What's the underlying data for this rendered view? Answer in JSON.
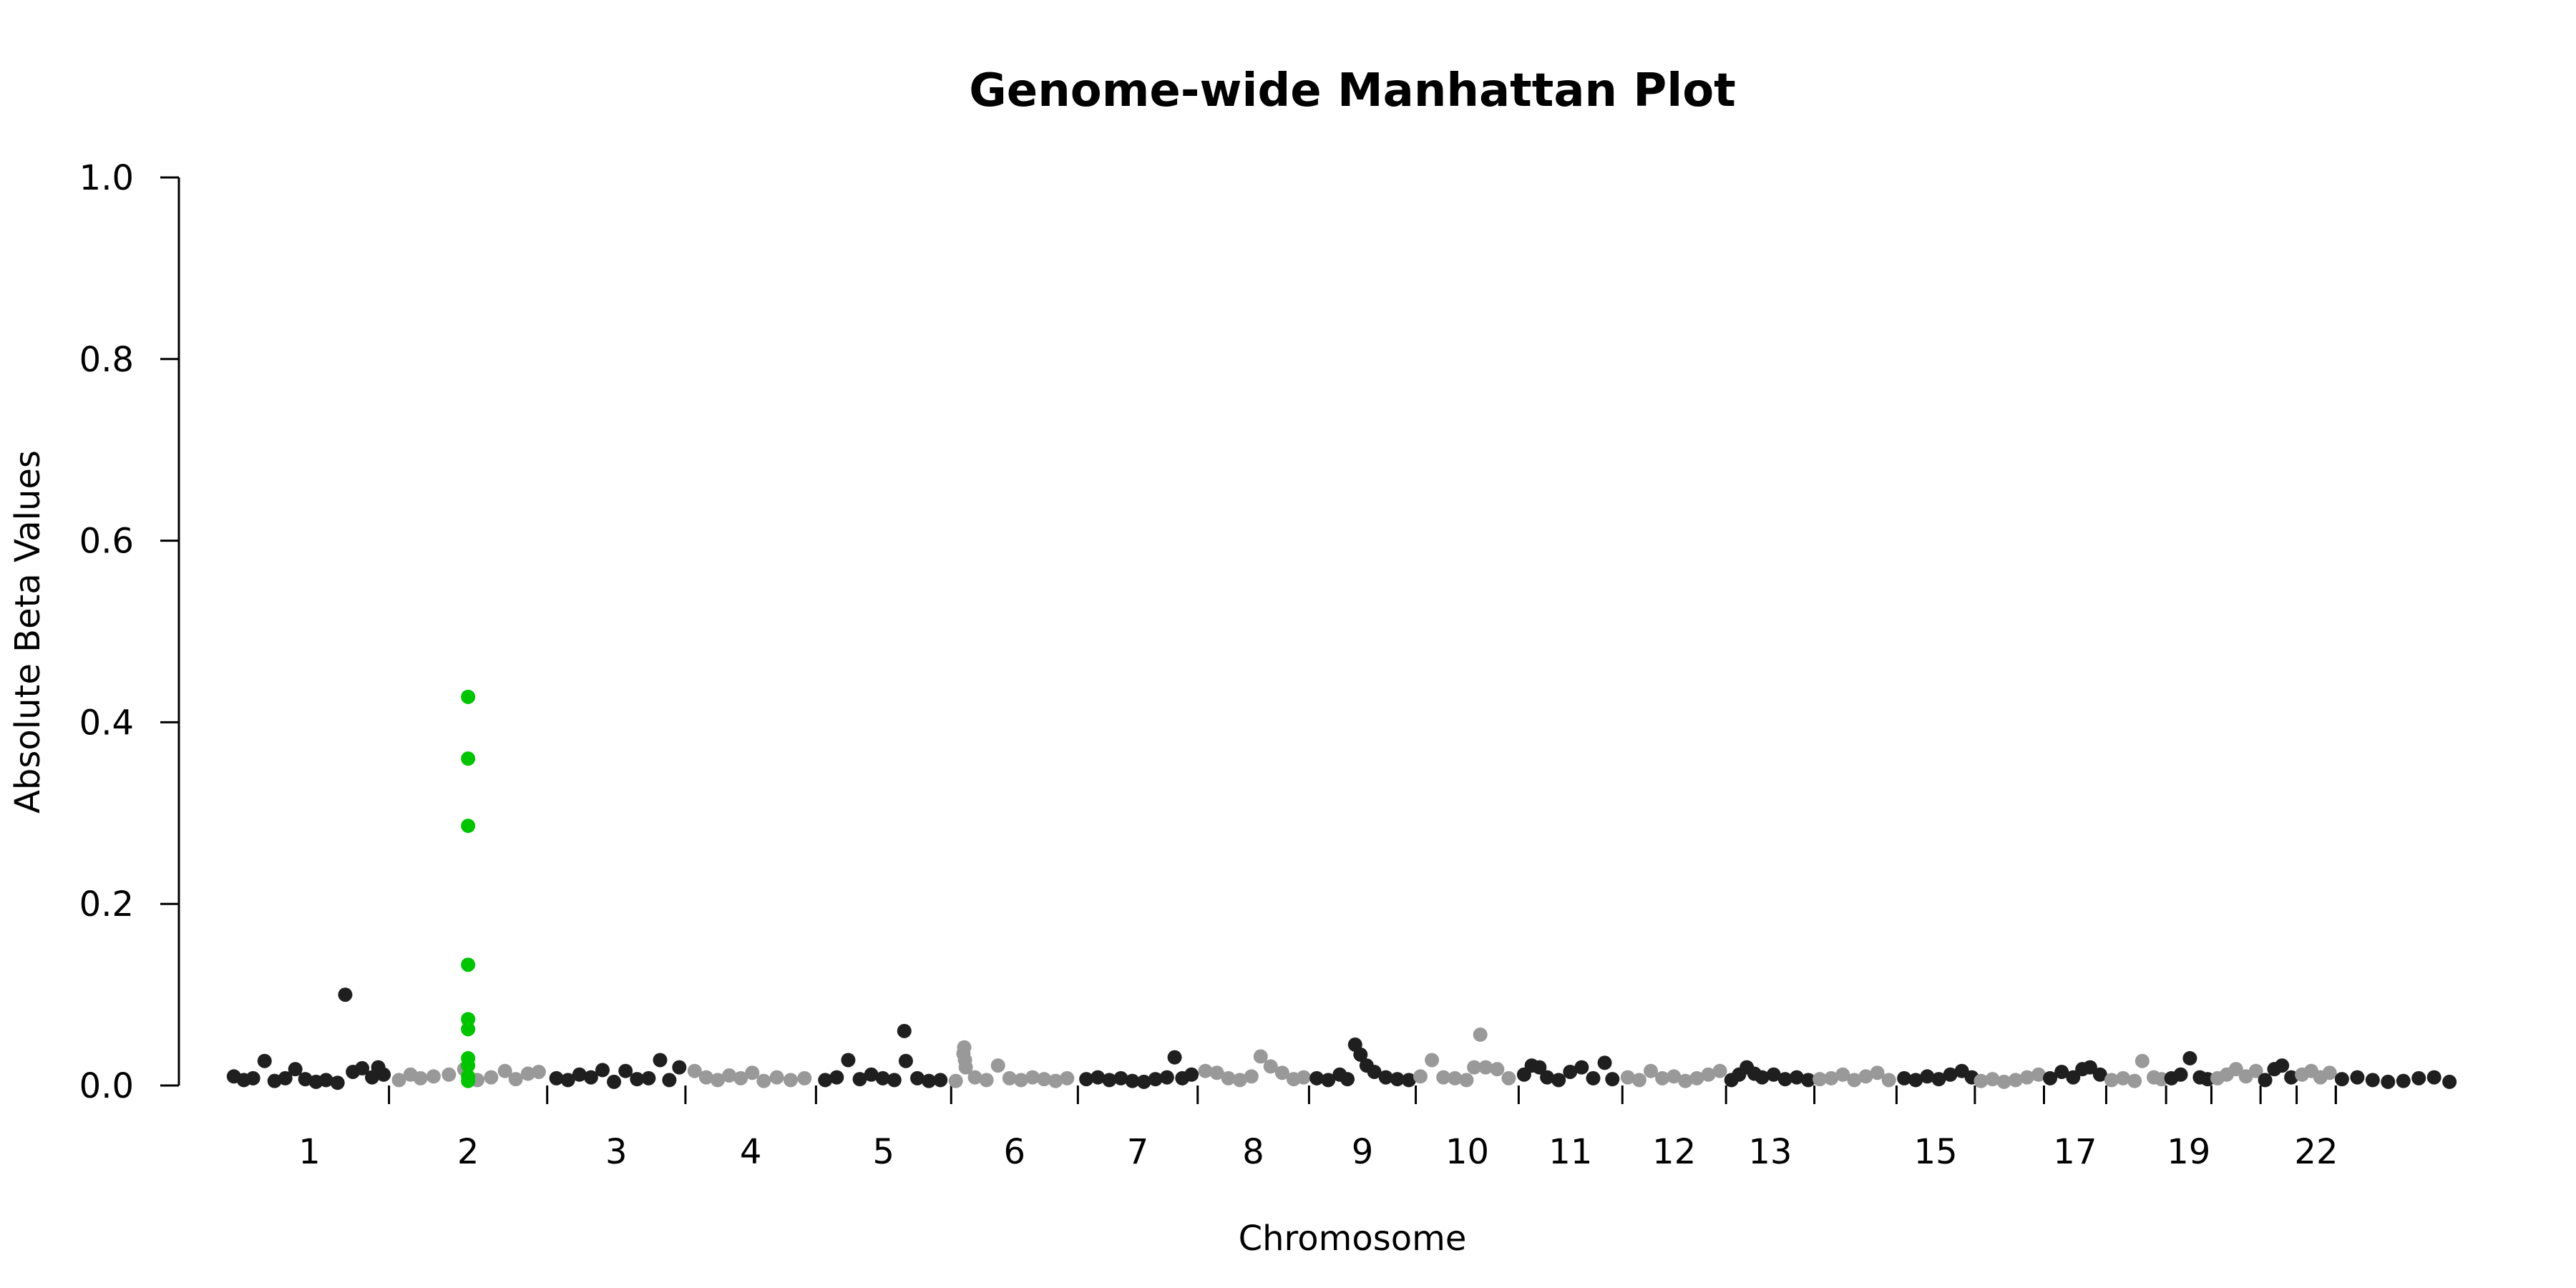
{
  "chart_data": {
    "type": "scatter",
    "title": "Genome-wide Manhattan Plot",
    "xlabel": "Chromosome",
    "ylabel": "Absolute Beta Values",
    "ylim": [
      0,
      1.0
    ],
    "yticks": [
      "0.0",
      "0.2",
      "0.4",
      "0.6",
      "0.8",
      "1.0"
    ],
    "grid": false,
    "legend": "none",
    "colors": {
      "odd": "#1f1f1f",
      "even": "#999999",
      "highlight": "#00c400"
    },
    "chromosomes": [
      {
        "chr": 1,
        "start": 0,
        "end": 207,
        "label": "1"
      },
      {
        "chr": 2,
        "start": 207,
        "end": 413,
        "label": "2"
      },
      {
        "chr": 3,
        "start": 413,
        "end": 593,
        "label": "3"
      },
      {
        "chr": 4,
        "start": 593,
        "end": 763,
        "label": "4"
      },
      {
        "chr": 5,
        "start": 763,
        "end": 939,
        "label": "5"
      },
      {
        "chr": 6,
        "start": 939,
        "end": 1104,
        "label": "6"
      },
      {
        "chr": 7,
        "start": 1104,
        "end": 1260,
        "label": "7"
      },
      {
        "chr": 8,
        "start": 1260,
        "end": 1405,
        "label": "8"
      },
      {
        "chr": 9,
        "start": 1405,
        "end": 1544,
        "label": "9"
      },
      {
        "chr": 10,
        "start": 1544,
        "end": 1678,
        "label": "10"
      },
      {
        "chr": 11,
        "start": 1678,
        "end": 1813,
        "label": "11"
      },
      {
        "chr": 12,
        "start": 1813,
        "end": 1948,
        "label": "12"
      },
      {
        "chr": 13,
        "start": 1948,
        "end": 2063,
        "label": "13"
      },
      {
        "chr": 14,
        "start": 2063,
        "end": 2170,
        "label": ""
      },
      {
        "chr": 15,
        "start": 2170,
        "end": 2272,
        "label": "15"
      },
      {
        "chr": 16,
        "start": 2272,
        "end": 2362,
        "label": ""
      },
      {
        "chr": 17,
        "start": 2362,
        "end": 2443,
        "label": "17"
      },
      {
        "chr": 18,
        "start": 2443,
        "end": 2521,
        "label": ""
      },
      {
        "chr": 19,
        "start": 2521,
        "end": 2580,
        "label": "19"
      },
      {
        "chr": 20,
        "start": 2580,
        "end": 2644,
        "label": ""
      },
      {
        "chr": 21,
        "start": 2644,
        "end": 2691,
        "label": ""
      },
      {
        "chr": 22,
        "start": 2691,
        "end": 2742,
        "label": "22"
      },
      {
        "chr": 23,
        "start": 2742,
        "end": 2900,
        "label": ""
      }
    ],
    "xlim": [
      -20,
      2915
    ],
    "background_points": [
      [
        5,
        0.01,
        1
      ],
      [
        18,
        0.006,
        1
      ],
      [
        30,
        0.008,
        1
      ],
      [
        45,
        0.027,
        1
      ],
      [
        58,
        0.005,
        1
      ],
      [
        72,
        0.008,
        1
      ],
      [
        85,
        0.018,
        1
      ],
      [
        98,
        0.007,
        1
      ],
      [
        112,
        0.004,
        1
      ],
      [
        125,
        0.006,
        1
      ],
      [
        140,
        0.003,
        1
      ],
      [
        150,
        0.1,
        1
      ],
      [
        160,
        0.015,
        1
      ],
      [
        172,
        0.019,
        1
      ],
      [
        185,
        0.009,
        1
      ],
      [
        193,
        0.02,
        1
      ],
      [
        200,
        0.012,
        1
      ],
      [
        220,
        0.006,
        2
      ],
      [
        235,
        0.012,
        2
      ],
      [
        248,
        0.008,
        2
      ],
      [
        265,
        0.01,
        2
      ],
      [
        285,
        0.012,
        2
      ],
      [
        305,
        0.018,
        2
      ],
      [
        322,
        0.006,
        2
      ],
      [
        340,
        0.009,
        2
      ],
      [
        358,
        0.016,
        2
      ],
      [
        372,
        0.007,
        2
      ],
      [
        388,
        0.013,
        2
      ],
      [
        402,
        0.015,
        2
      ],
      [
        425,
        0.008,
        3
      ],
      [
        440,
        0.006,
        3
      ],
      [
        455,
        0.012,
        3
      ],
      [
        470,
        0.009,
        3
      ],
      [
        485,
        0.017,
        3
      ],
      [
        500,
        0.004,
        3
      ],
      [
        515,
        0.016,
        3
      ],
      [
        530,
        0.007,
        3
      ],
      [
        545,
        0.008,
        3
      ],
      [
        560,
        0.028,
        3
      ],
      [
        572,
        0.006,
        3
      ],
      [
        585,
        0.02,
        3
      ],
      [
        605,
        0.016,
        4
      ],
      [
        620,
        0.009,
        4
      ],
      [
        635,
        0.006,
        4
      ],
      [
        650,
        0.011,
        4
      ],
      [
        665,
        0.008,
        4
      ],
      [
        680,
        0.014,
        4
      ],
      [
        695,
        0.005,
        4
      ],
      [
        712,
        0.009,
        4
      ],
      [
        730,
        0.006,
        4
      ],
      [
        748,
        0.008,
        4
      ],
      [
        775,
        0.006,
        5
      ],
      [
        790,
        0.009,
        5
      ],
      [
        805,
        0.028,
        5
      ],
      [
        820,
        0.007,
        5
      ],
      [
        835,
        0.012,
        5
      ],
      [
        850,
        0.008,
        5
      ],
      [
        865,
        0.006,
        5
      ],
      [
        878,
        0.06,
        5
      ],
      [
        880,
        0.027,
        5
      ],
      [
        895,
        0.008,
        5
      ],
      [
        910,
        0.005,
        5
      ],
      [
        925,
        0.006,
        5
      ],
      [
        945,
        0.005,
        6
      ],
      [
        955,
        0.035,
        6
      ],
      [
        956,
        0.042,
        6
      ],
      [
        957,
        0.028,
        6
      ],
      [
        958,
        0.02,
        6
      ],
      [
        970,
        0.009,
        6
      ],
      [
        985,
        0.006,
        6
      ],
      [
        1000,
        0.022,
        6
      ],
      [
        1015,
        0.008,
        6
      ],
      [
        1030,
        0.006,
        6
      ],
      [
        1045,
        0.009,
        6
      ],
      [
        1060,
        0.007,
        6
      ],
      [
        1075,
        0.005,
        6
      ],
      [
        1090,
        0.008,
        6
      ],
      [
        1115,
        0.007,
        7
      ],
      [
        1130,
        0.009,
        7
      ],
      [
        1145,
        0.006,
        7
      ],
      [
        1160,
        0.008,
        7
      ],
      [
        1175,
        0.005,
        7
      ],
      [
        1190,
        0.004,
        7
      ],
      [
        1205,
        0.007,
        7
      ],
      [
        1220,
        0.009,
        7
      ],
      [
        1230,
        0.031,
        7
      ],
      [
        1240,
        0.008,
        7
      ],
      [
        1252,
        0.012,
        7
      ],
      [
        1270,
        0.016,
        8
      ],
      [
        1285,
        0.014,
        8
      ],
      [
        1300,
        0.008,
        8
      ],
      [
        1315,
        0.006,
        8
      ],
      [
        1330,
        0.01,
        8
      ],
      [
        1342,
        0.032,
        8
      ],
      [
        1355,
        0.021,
        8
      ],
      [
        1370,
        0.014,
        8
      ],
      [
        1385,
        0.007,
        8
      ],
      [
        1398,
        0.009,
        8
      ],
      [
        1415,
        0.008,
        9
      ],
      [
        1430,
        0.006,
        9
      ],
      [
        1445,
        0.012,
        9
      ],
      [
        1455,
        0.007,
        9
      ],
      [
        1465,
        0.045,
        9
      ],
      [
        1472,
        0.034,
        9
      ],
      [
        1480,
        0.022,
        9
      ],
      [
        1490,
        0.015,
        9
      ],
      [
        1505,
        0.009,
        9
      ],
      [
        1520,
        0.007,
        9
      ],
      [
        1535,
        0.006,
        9
      ],
      [
        1550,
        0.01,
        10
      ],
      [
        1565,
        0.028,
        10
      ],
      [
        1580,
        0.009,
        10
      ],
      [
        1595,
        0.008,
        10
      ],
      [
        1610,
        0.006,
        10
      ],
      [
        1620,
        0.02,
        10
      ],
      [
        1628,
        0.056,
        10
      ],
      [
        1635,
        0.02,
        10
      ],
      [
        1650,
        0.018,
        10
      ],
      [
        1665,
        0.008,
        10
      ],
      [
        1685,
        0.012,
        11
      ],
      [
        1695,
        0.022,
        11
      ],
      [
        1705,
        0.02,
        11
      ],
      [
        1715,
        0.009,
        11
      ],
      [
        1730,
        0.006,
        11
      ],
      [
        1745,
        0.015,
        11
      ],
      [
        1760,
        0.02,
        11
      ],
      [
        1775,
        0.008,
        11
      ],
      [
        1790,
        0.025,
        11
      ],
      [
        1800,
        0.007,
        11
      ],
      [
        1820,
        0.009,
        12
      ],
      [
        1835,
        0.006,
        12
      ],
      [
        1850,
        0.016,
        12
      ],
      [
        1865,
        0.008,
        12
      ],
      [
        1880,
        0.01,
        12
      ],
      [
        1895,
        0.005,
        12
      ],
      [
        1910,
        0.008,
        12
      ],
      [
        1925,
        0.012,
        12
      ],
      [
        1940,
        0.016,
        12
      ],
      [
        1955,
        0.006,
        13
      ],
      [
        1965,
        0.012,
        13
      ],
      [
        1975,
        0.02,
        13
      ],
      [
        1985,
        0.013,
        13
      ],
      [
        1995,
        0.009,
        13
      ],
      [
        2010,
        0.012,
        13
      ],
      [
        2025,
        0.007,
        13
      ],
      [
        2040,
        0.009,
        13
      ],
      [
        2055,
        0.006,
        13
      ],
      [
        2070,
        0.007,
        14
      ],
      [
        2085,
        0.008,
        14
      ],
      [
        2100,
        0.012,
        14
      ],
      [
        2115,
        0.006,
        14
      ],
      [
        2130,
        0.01,
        14
      ],
      [
        2145,
        0.014,
        14
      ],
      [
        2160,
        0.006,
        14
      ],
      [
        2180,
        0.008,
        15
      ],
      [
        2195,
        0.006,
        15
      ],
      [
        2210,
        0.01,
        15
      ],
      [
        2225,
        0.007,
        15
      ],
      [
        2240,
        0.012,
        15
      ],
      [
        2255,
        0.016,
        15
      ],
      [
        2268,
        0.009,
        15
      ],
      [
        2280,
        0.005,
        16
      ],
      [
        2295,
        0.007,
        16
      ],
      [
        2310,
        0.004,
        16
      ],
      [
        2325,
        0.006,
        16
      ],
      [
        2340,
        0.009,
        16
      ],
      [
        2355,
        0.012,
        16
      ],
      [
        2370,
        0.008,
        17
      ],
      [
        2385,
        0.015,
        17
      ],
      [
        2400,
        0.009,
        17
      ],
      [
        2412,
        0.018,
        17
      ],
      [
        2422,
        0.02,
        17
      ],
      [
        2435,
        0.012,
        17
      ],
      [
        2450,
        0.006,
        18
      ],
      [
        2465,
        0.008,
        18
      ],
      [
        2480,
        0.005,
        18
      ],
      [
        2490,
        0.027,
        18
      ],
      [
        2505,
        0.009,
        18
      ],
      [
        2515,
        0.007,
        18
      ],
      [
        2528,
        0.008,
        19
      ],
      [
        2540,
        0.012,
        19
      ],
      [
        2552,
        0.03,
        19
      ],
      [
        2565,
        0.009,
        19
      ],
      [
        2575,
        0.007,
        19
      ],
      [
        2588,
        0.008,
        20
      ],
      [
        2600,
        0.012,
        20
      ],
      [
        2612,
        0.018,
        20
      ],
      [
        2625,
        0.01,
        20
      ],
      [
        2638,
        0.016,
        20
      ],
      [
        2650,
        0.006,
        21
      ],
      [
        2662,
        0.018,
        21
      ],
      [
        2672,
        0.022,
        21
      ],
      [
        2684,
        0.009,
        21
      ],
      [
        2698,
        0.012,
        22
      ],
      [
        2710,
        0.016,
        22
      ],
      [
        2722,
        0.009,
        22
      ],
      [
        2734,
        0.014,
        22
      ],
      [
        2750,
        0.007,
        23
      ],
      [
        2770,
        0.009,
        23
      ],
      [
        2790,
        0.006,
        23
      ],
      [
        2810,
        0.004,
        23
      ],
      [
        2830,
        0.005,
        23
      ],
      [
        2850,
        0.008,
        23
      ],
      [
        2870,
        0.009,
        23
      ],
      [
        2890,
        0.004,
        23
      ]
    ],
    "highlight_points": [
      [
        310,
        0.428
      ],
      [
        310,
        0.36
      ],
      [
        310,
        0.286
      ],
      [
        310,
        0.133
      ],
      [
        310,
        0.073
      ],
      [
        310,
        0.062
      ],
      [
        310,
        0.03
      ],
      [
        310,
        0.022
      ],
      [
        310,
        0.01
      ],
      [
        310,
        0.005
      ]
    ]
  }
}
